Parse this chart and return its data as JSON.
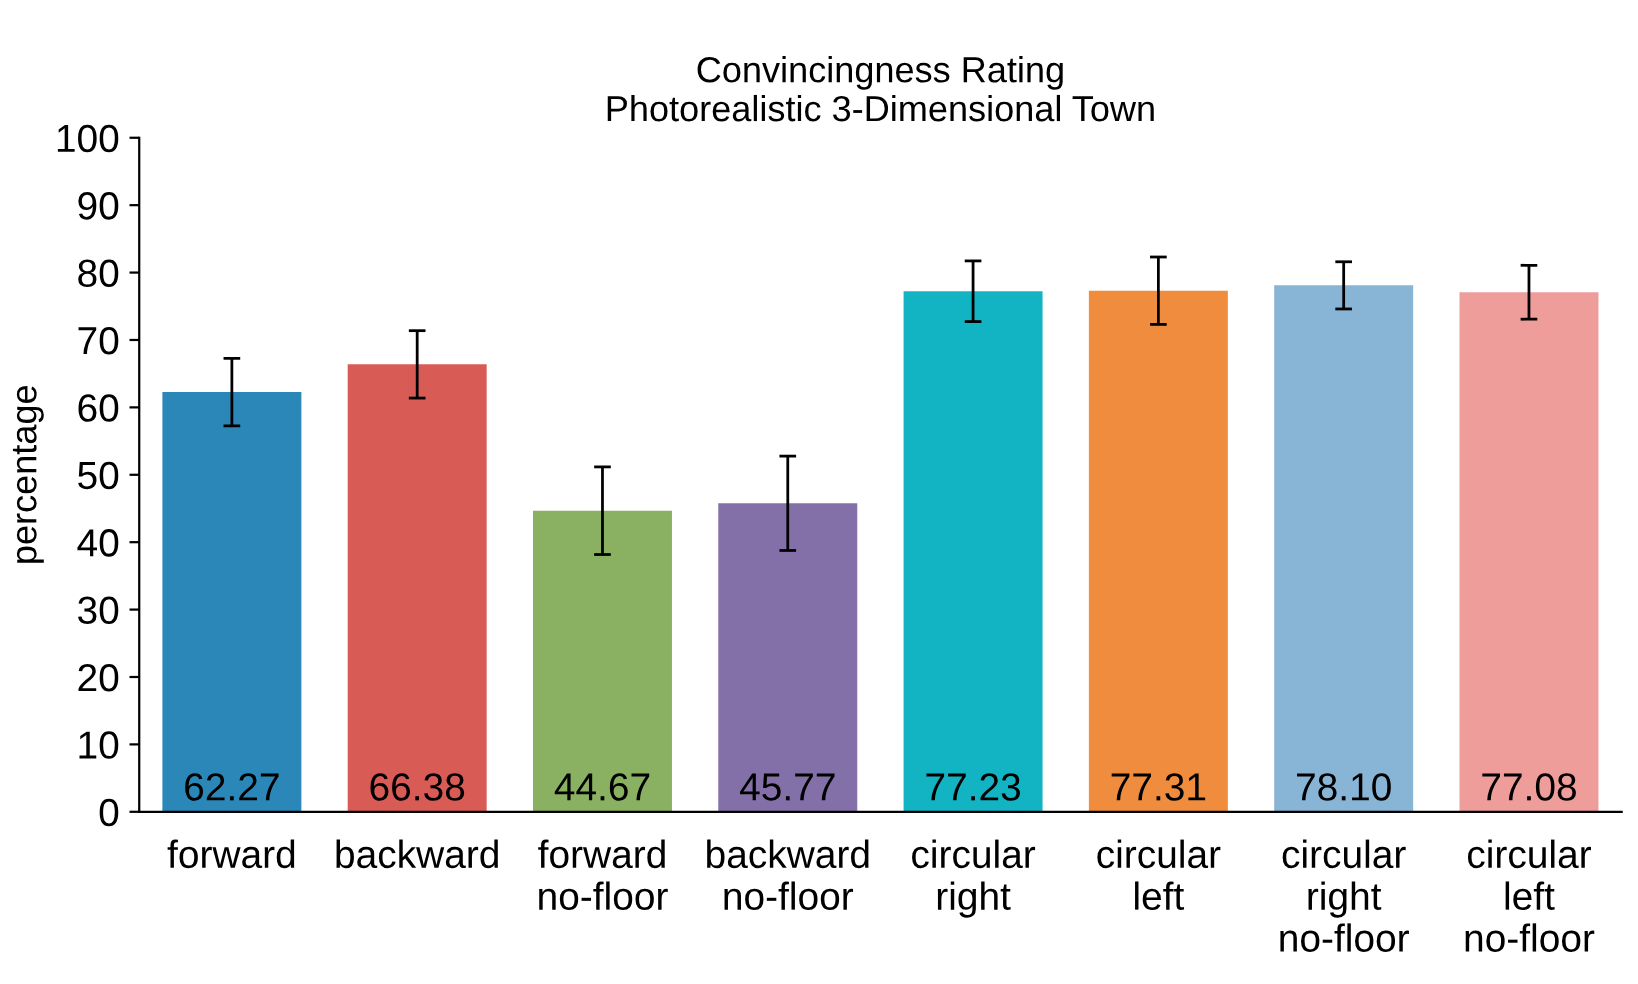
{
  "chart_data": {
    "type": "bar",
    "title": "Convincingness Rating\nPhotorealistic 3-Dimensional Town",
    "ylabel": "percentage",
    "categories": [
      "forward",
      "backward",
      "forward\nno-floor",
      "backward\nno-floor",
      "circular\nright",
      "circular\nleft",
      "circular\nright\nno-floor",
      "circular\nleft\nno-floor"
    ],
    "values": [
      62.27,
      66.38,
      44.67,
      45.77,
      77.23,
      77.31,
      78.1,
      77.08
    ],
    "value_labels": [
      "62.27",
      "66.38",
      "44.67",
      "45.77",
      "77.23",
      "77.31",
      "78.10",
      "77.08"
    ],
    "errors": [
      5,
      5,
      6.5,
      7,
      4.5,
      5,
      3.5,
      4
    ],
    "colors": [
      "#2a87b8",
      "#d95b55",
      "#8ab062",
      "#8470a8",
      "#12b4c4",
      "#f08c3e",
      "#88b4d6",
      "#ef9d9a"
    ],
    "ylim": [
      0,
      100
    ],
    "yticks": [
      0,
      10,
      20,
      30,
      40,
      50,
      60,
      70,
      80,
      90,
      100
    ],
    "grid": false,
    "legend": false
  }
}
